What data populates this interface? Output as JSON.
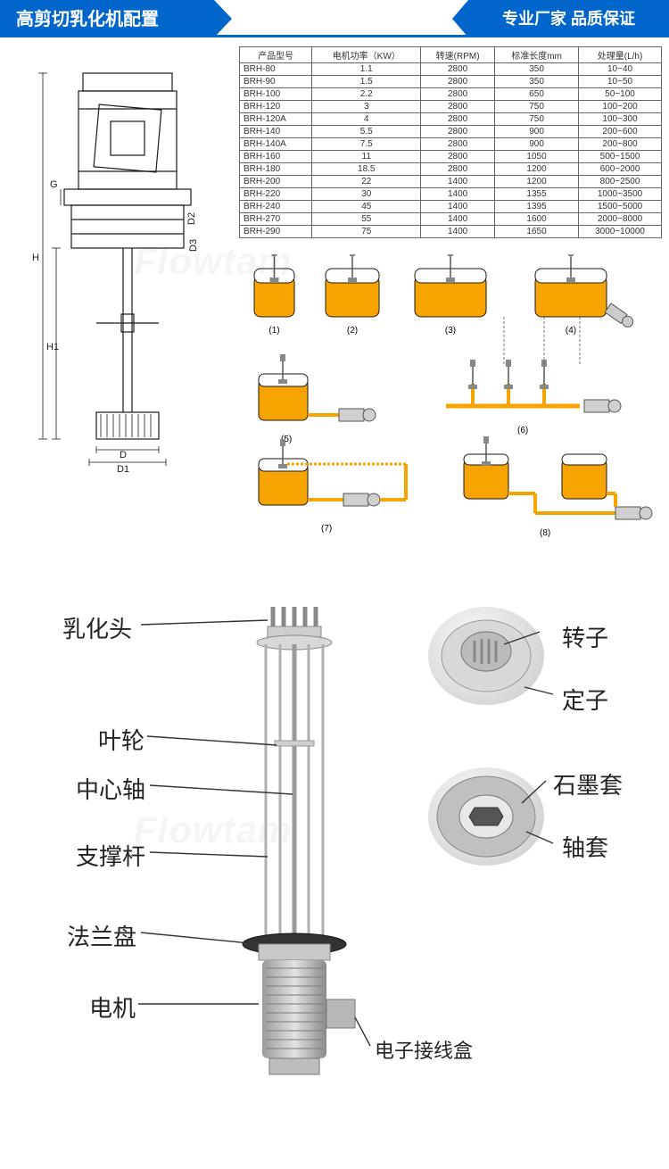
{
  "header": {
    "title": "高剪切乳化机配置",
    "slogan": "专业厂家  品质保证"
  },
  "spec_table": {
    "columns": [
      "产品型号",
      "电机功率（KW）",
      "转速(RPM)",
      "标准长度mm",
      "处理量(L/h)"
    ],
    "rows": [
      [
        "BRH-80",
        "1.1",
        "2800",
        "350",
        "10~40"
      ],
      [
        "BRH-90",
        "1.5",
        "2800",
        "350",
        "10~50"
      ],
      [
        "BRH-100",
        "2.2",
        "2800",
        "650",
        "50~100"
      ],
      [
        "BRH-120",
        "3",
        "2800",
        "750",
        "100~200"
      ],
      [
        "BRH-120A",
        "4",
        "2800",
        "750",
        "100~300"
      ],
      [
        "BRH-140",
        "5.5",
        "2800",
        "900",
        "200~600"
      ],
      [
        "BRH-140A",
        "7.5",
        "2800",
        "900",
        "200~800"
      ],
      [
        "BRH-160",
        "11",
        "2800",
        "1050",
        "500~1500"
      ],
      [
        "BRH-180",
        "18.5",
        "2800",
        "1200",
        "600~2000"
      ],
      [
        "BRH-200",
        "22",
        "1400",
        "1200",
        "800~2500"
      ],
      [
        "BRH-220",
        "30",
        "1400",
        "1355",
        "1000~3500"
      ],
      [
        "BRH-240",
        "45",
        "1400",
        "1395",
        "1500~5000"
      ],
      [
        "BRH-270",
        "55",
        "1400",
        "1600",
        "2000~8000"
      ],
      [
        "BRH-290",
        "75",
        "1400",
        "1650",
        "3000~10000"
      ]
    ],
    "border_color": "#666666",
    "font_size": 10
  },
  "drawing": {
    "dim_labels": {
      "H": "H",
      "H1": "H1",
      "D": "D",
      "D1": "D1",
      "D2": "D2",
      "D3": "D3",
      "G": "G"
    },
    "line_color": "#1a1a1a"
  },
  "flow": {
    "numbers": [
      "(1)",
      "(2)",
      "(3)",
      "(4)",
      "(5)",
      "(6)",
      "(7)",
      "(8)"
    ],
    "fluid_color": "#f7a400",
    "tank_line": "#1a1a1a",
    "water_color": "#6db9e8"
  },
  "parts": {
    "emulsify_head": "乳化头",
    "rotor": "转子",
    "stator": "定子",
    "impeller": "叶轮",
    "center_shaft": "中心轴",
    "graphite_sleeve": "石墨套",
    "shaft_sleeve": "轴套",
    "support_rod": "支撑杆",
    "flange": "法兰盘",
    "motor": "电机",
    "jbox": "电子接线盒"
  },
  "colors": {
    "brand_blue": "#0066cc",
    "metal_light": "#e8e8e8",
    "metal_mid": "#bfbfbf",
    "metal_dark": "#7a7a7a"
  },
  "watermark": "Flowtam"
}
